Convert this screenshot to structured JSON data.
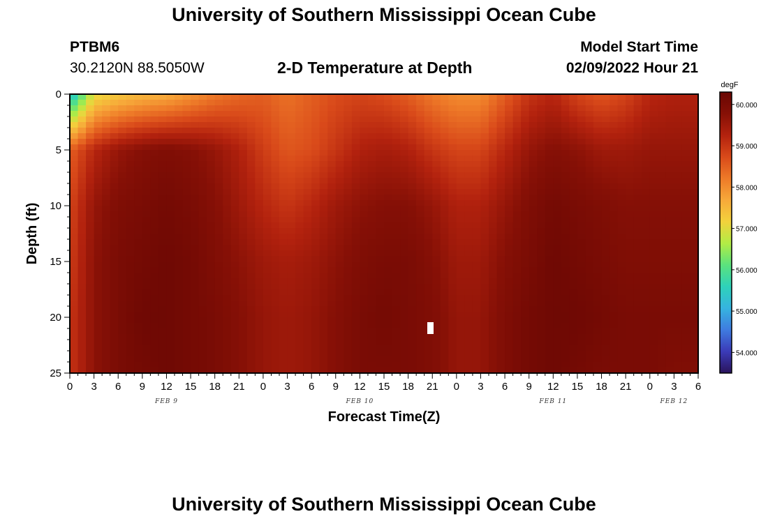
{
  "header": {
    "title": "University of Southern Mississippi Ocean Cube",
    "station_id": "PTBM6",
    "coordinates": "30.2120N  88.5050W",
    "subtitle": "2-D Temperature at Depth",
    "model_start_label": "Model Start Time",
    "model_start_value": "02/09/2022 Hour 21"
  },
  "footer": {
    "title": "University of Southern Mississippi Ocean Cube"
  },
  "chart_data": {
    "type": "heatmap",
    "title": "2-D Temperature at Depth",
    "xlabel": "Forecast Time(Z)",
    "ylabel": "Depth (ft)",
    "x_hours_range": [
      0,
      78
    ],
    "x_tick_labels": [
      "0",
      "3",
      "6",
      "9",
      "12",
      "15",
      "18",
      "21",
      "0",
      "3",
      "6",
      "9",
      "12",
      "15",
      "18",
      "21",
      "0",
      "3",
      "6",
      "9",
      "12",
      "15",
      "18",
      "21",
      "0",
      "3",
      "6"
    ],
    "date_labels": [
      {
        "label": "FEB 9",
        "hour": 12
      },
      {
        "label": "FEB 10",
        "hour": 36
      },
      {
        "label": "FEB 11",
        "hour": 60
      },
      {
        "label": "FEB 12",
        "hour": 75
      }
    ],
    "ylim": [
      0,
      25
    ],
    "y_ticks": [
      0,
      5,
      10,
      15,
      20,
      25
    ],
    "colorbar": {
      "unit": "degF",
      "range": [
        53.5,
        60.3
      ],
      "ticks": [
        "60.000",
        "59.000",
        "58.000",
        "57.000",
        "56.000",
        "55.000",
        "54.000"
      ],
      "colors": [
        "#2a145c",
        "#3b3bb8",
        "#3f7be0",
        "#36b4e0",
        "#2ed2ba",
        "#5be27d",
        "#b2ec45",
        "#f2d23c",
        "#f7a93a",
        "#ee7a28",
        "#d94a1a",
        "#b3220e",
        "#861006",
        "#6a0703"
      ]
    },
    "temperature_field_degF": {
      "time_hours": [
        0,
        3,
        6,
        9,
        12,
        15,
        18,
        21,
        24,
        27,
        30,
        33,
        36,
        39,
        42,
        45,
        48,
        51,
        54,
        57,
        60,
        63,
        66,
        69,
        72,
        75,
        78
      ],
      "depths_ft": [
        0,
        5,
        10,
        15,
        20,
        25
      ],
      "values": [
        [
          55.2,
          57.0,
          57.3,
          57.5,
          57.6,
          57.9,
          58.2,
          58.4,
          58.5,
          58.3,
          58.5,
          58.7,
          58.8,
          58.7,
          58.5,
          58.2,
          58.0,
          58.0,
          58.5,
          59.0,
          59.2,
          58.8,
          58.6,
          58.8,
          59.2,
          59.3,
          59.3
        ],
        [
          58.5,
          59.2,
          59.6,
          59.8,
          59.9,
          59.8,
          59.6,
          59.3,
          58.9,
          58.6,
          58.7,
          59.0,
          59.3,
          59.4,
          59.3,
          59.0,
          58.8,
          58.8,
          59.2,
          59.6,
          59.8,
          59.7,
          59.5,
          59.5,
          59.6,
          59.6,
          59.6
        ],
        [
          58.8,
          59.6,
          59.9,
          60.0,
          60.1,
          60.0,
          59.8,
          59.5,
          59.2,
          59.0,
          59.2,
          59.5,
          59.7,
          59.8,
          59.8,
          59.6,
          59.3,
          59.3,
          59.6,
          59.9,
          60.1,
          60.0,
          59.9,
          59.8,
          59.8,
          59.8,
          59.8
        ],
        [
          58.9,
          59.7,
          60.0,
          60.1,
          60.2,
          60.1,
          59.9,
          59.7,
          59.5,
          59.4,
          59.5,
          59.7,
          59.9,
          60.0,
          60.0,
          59.8,
          59.5,
          59.5,
          59.8,
          60.0,
          60.2,
          60.1,
          60.0,
          59.9,
          59.9,
          59.9,
          59.9
        ],
        [
          59.0,
          59.7,
          60.0,
          60.2,
          60.2,
          60.1,
          60.0,
          59.8,
          59.6,
          59.5,
          59.6,
          59.8,
          60.0,
          60.1,
          60.0,
          59.9,
          59.6,
          59.6,
          59.9,
          60.1,
          60.2,
          60.2,
          60.1,
          60.0,
          60.0,
          60.0,
          60.0
        ],
        [
          59.0,
          59.7,
          60.0,
          60.1,
          60.2,
          60.1,
          60.0,
          59.8,
          59.6,
          59.5,
          59.6,
          59.8,
          60.0,
          60.0,
          60.0,
          59.9,
          59.6,
          59.6,
          59.9,
          60.1,
          60.2,
          60.1,
          60.0,
          60.0,
          60.0,
          59.9,
          59.9
        ]
      ]
    }
  }
}
